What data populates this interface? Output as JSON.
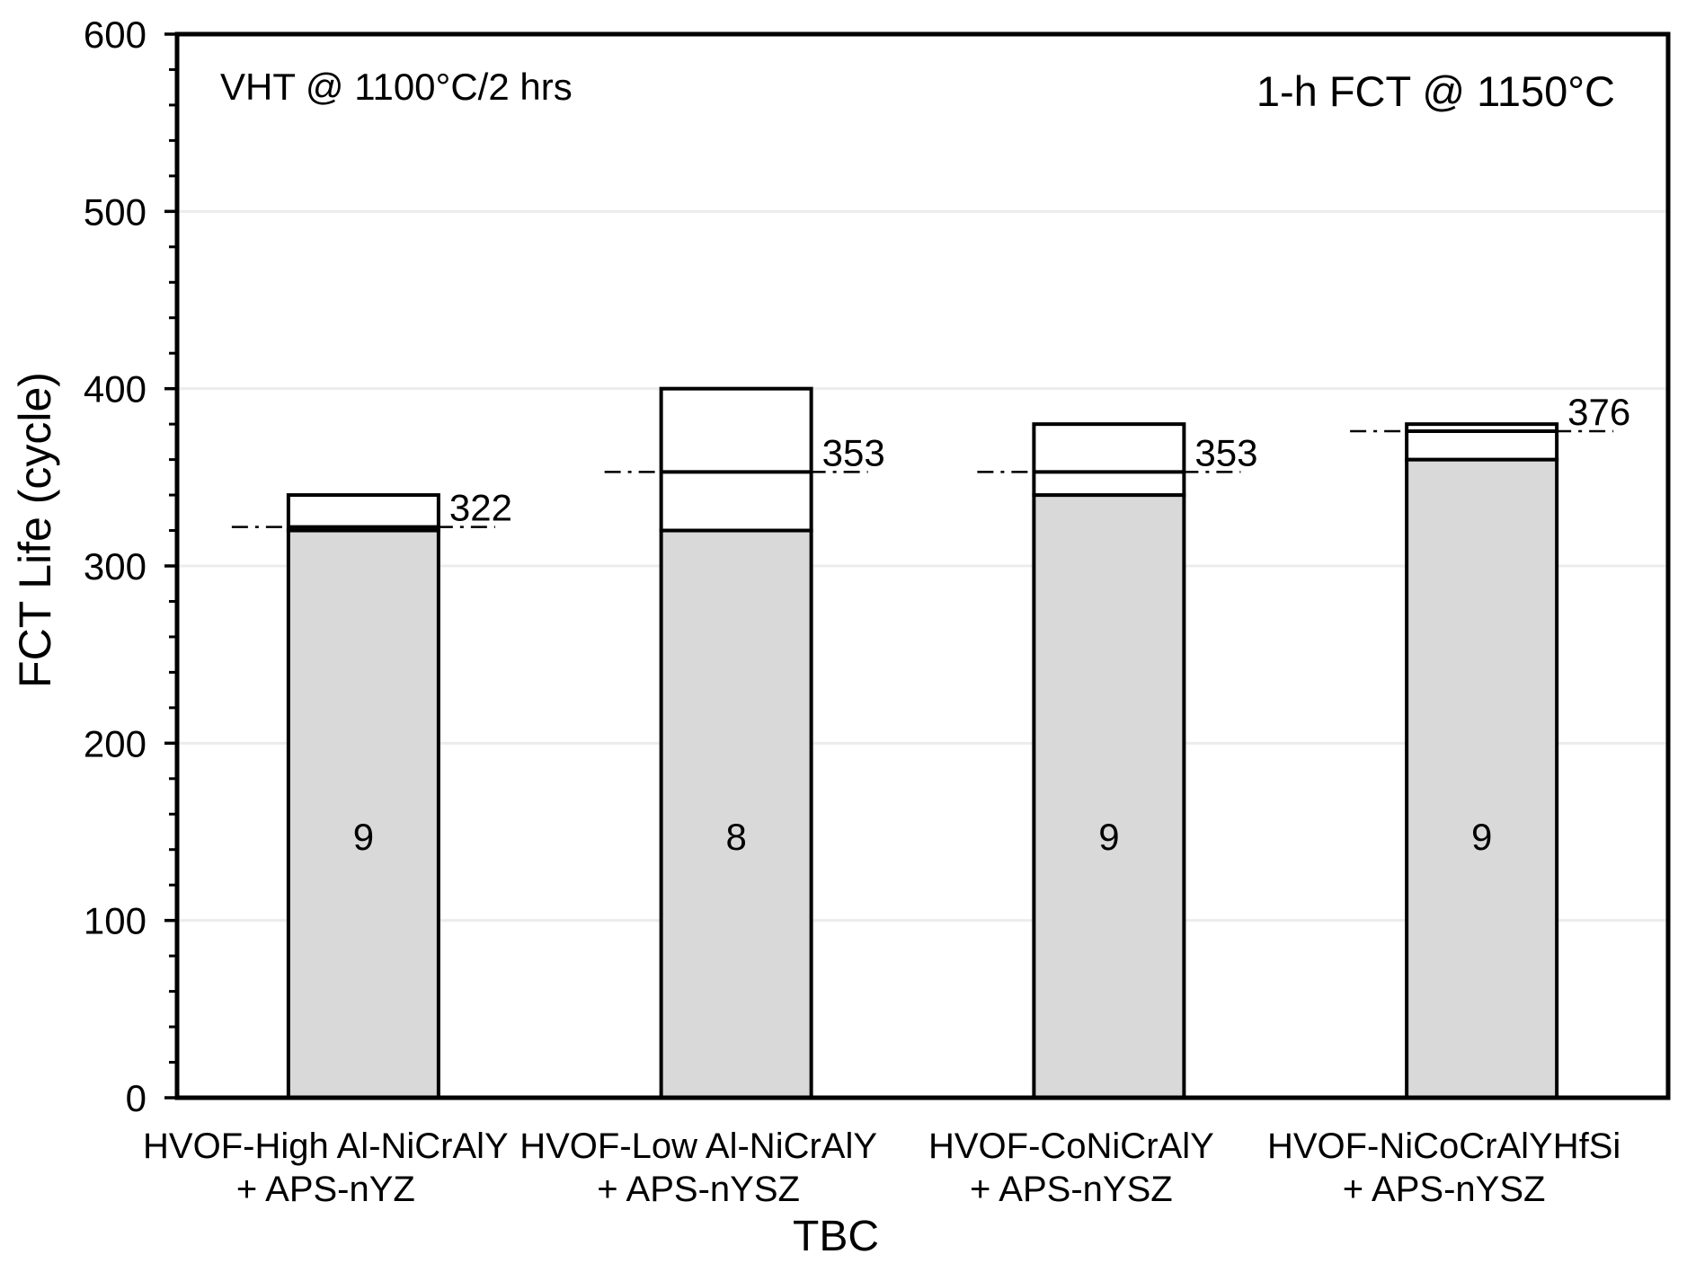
{
  "chart_data": {
    "type": "bar",
    "subtype": "floating-range-bar-with-mean",
    "annotation_left": "VHT @ 1100°C/2 hrs",
    "annotation_right": "1-h FCT @ 1150°C",
    "xlabel": "TBC",
    "ylabel": "FCT Life (cycle)",
    "ylim": [
      0,
      600
    ],
    "y_major_step": 100,
    "y_minor_step": 20,
    "y_tick_labels": [
      "0",
      "100",
      "200",
      "300",
      "400",
      "500",
      "600"
    ],
    "grid": "horizontal major gridlines only, light gray",
    "legend_position": "none",
    "categories": [
      {
        "line1": "HVOF-High Al-NiCrAlY",
        "line2": "+ APS-nYZ"
      },
      {
        "line1": "HVOF-Low Al-NiCrAlY",
        "line2": "+ APS-nYSZ"
      },
      {
        "line1": "HVOF-CoNiCrAlY",
        "line2": "+ APS-nYSZ"
      },
      {
        "line1": "HVOF-NiCoCrAlYHfSi",
        "line2": "+ APS-nYSZ"
      }
    ],
    "bars": [
      {
        "min": 320,
        "mean": 322,
        "max": 340,
        "mean_label": "322",
        "sample_count": "9"
      },
      {
        "min": 320,
        "mean": 353,
        "max": 400,
        "mean_label": "353",
        "sample_count": "8"
      },
      {
        "min": 340,
        "mean": 353,
        "max": 380,
        "mean_label": "353",
        "sample_count": "9"
      },
      {
        "min": 360,
        "mean": 376,
        "max": 380,
        "mean_label": "376",
        "sample_count": "9"
      }
    ],
    "colors": {
      "background": "#ffffff",
      "bar_base_fill": "#d9d9d9",
      "range_box_fill": "#ffffff",
      "bar_stroke": "#000000",
      "mean_line": "#000000",
      "gridline": "#ececec",
      "axis": "#000000",
      "text": "#000000"
    }
  }
}
